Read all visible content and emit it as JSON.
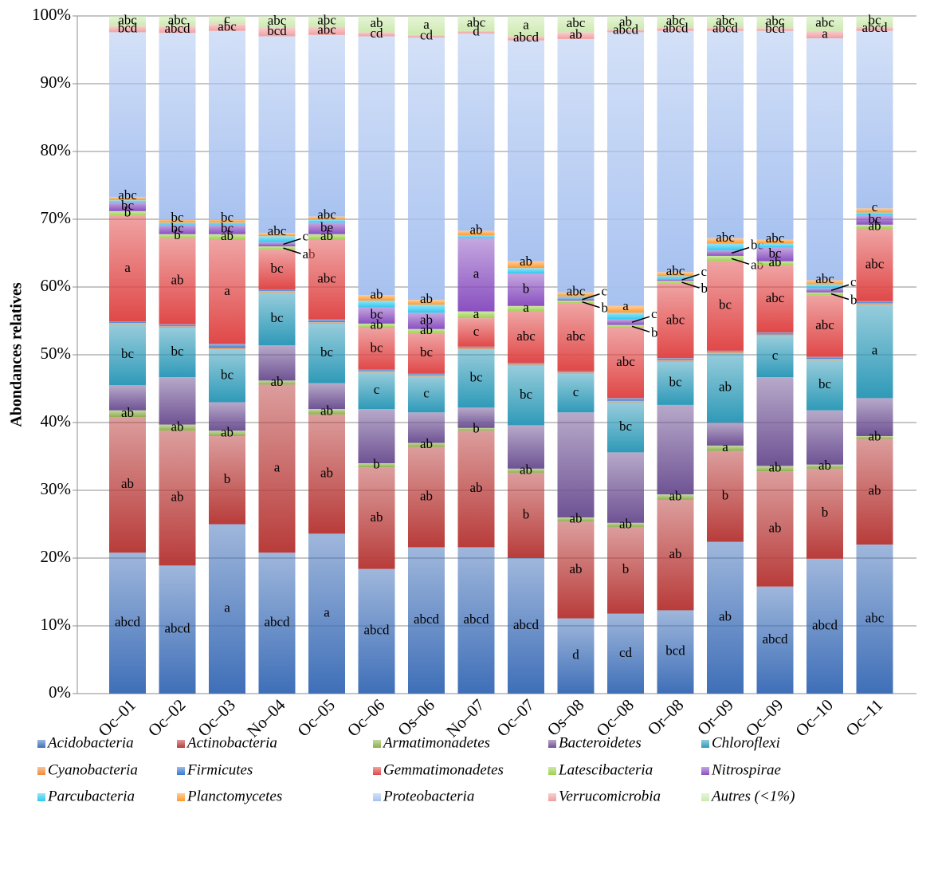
{
  "chart_data": {
    "type": "stacked_bar",
    "y_label": "Abondances  relatives",
    "categories": [
      "Oc–01",
      "Oc–02",
      "Oc–03",
      "No–04",
      "Oc–05",
      "Oc–06",
      "Os–06",
      "No–07",
      "Oc–07",
      "Os–08",
      "Oc–08",
      "Or–08",
      "Or–09",
      "Oc–09",
      "Oc–10",
      "Oc–11"
    ],
    "ylim": [
      0,
      100
    ],
    "yticks": [
      {
        "value": 0,
        "label": "0%"
      },
      {
        "value": 10,
        "label": "10%"
      },
      {
        "value": 20,
        "label": "20%"
      },
      {
        "value": 30,
        "label": "30%"
      },
      {
        "value": 40,
        "label": "40%"
      },
      {
        "value": 50,
        "label": "50%"
      },
      {
        "value": 60,
        "label": "60%"
      },
      {
        "value": 70,
        "label": "70%"
      },
      {
        "value": 80,
        "label": "80%"
      },
      {
        "value": 90,
        "label": "90%"
      },
      {
        "value": 100,
        "label": "100%"
      }
    ],
    "grid": true,
    "legend": "bottom",
    "series": [
      {
        "name": "Acidobacteria",
        "color": "#3f6fb8",
        "values": [
          20.8,
          18.9,
          25.0,
          20.8,
          23.6,
          18.4,
          21.6,
          21.6,
          20.0,
          11.1,
          11.8,
          12.3,
          22.4,
          15.8,
          19.9,
          22.0
        ],
        "letters": [
          "abcd",
          "abcd",
          "a",
          "abcd",
          "a",
          "abcd",
          "abcd",
          "abcd",
          "abcd",
          "d",
          "cd",
          "bcd",
          "ab",
          "abcd",
          "abcd",
          "abc"
        ]
      },
      {
        "name": "Actinobacteria",
        "color": "#b83c3a",
        "values": [
          20.0,
          19.9,
          13.0,
          24.8,
          17.6,
          15.0,
          14.8,
          17.2,
          12.6,
          14.3,
          12.8,
          16.3,
          13.4,
          17.0,
          13.3,
          15.6
        ],
        "letters": [
          "ab",
          "ab",
          "b",
          "a",
          "ab",
          "ab",
          "ab",
          "ab",
          "b",
          "ab",
          "b",
          "ab",
          "b",
          "ab",
          "b",
          "ab"
        ]
      },
      {
        "name": "Armatimonadetes",
        "color": "#8cb04a",
        "values": [
          1.0,
          0.9,
          0.8,
          0.6,
          0.8,
          0.6,
          0.6,
          0.4,
          0.6,
          0.6,
          0.6,
          0.8,
          0.8,
          0.8,
          0.6,
          0.4
        ],
        "letters": [
          "ab",
          "ab",
          "ab",
          "ab",
          "ab",
          "b",
          "ab",
          "b",
          "ab",
          "ab",
          "ab",
          "ab",
          "a",
          "ab",
          "ab",
          "ab"
        ]
      },
      {
        "name": "Bacteroidetes",
        "color": "#6f5394",
        "values": [
          3.7,
          7.0,
          4.2,
          5.2,
          3.8,
          8.0,
          4.5,
          3.0,
          6.4,
          15.5,
          10.4,
          13.2,
          3.4,
          13.1,
          8.0,
          5.6
        ]
      },
      {
        "name": "Chloroflexi",
        "color": "#2f9ab8",
        "values": [
          9.0,
          7.3,
          7.8,
          7.8,
          8.8,
          5.4,
          5.3,
          8.6,
          8.8,
          5.7,
          7.4,
          6.4,
          10.2,
          6.1,
          7.4,
          13.8
        ],
        "letters": [
          "bc",
          "bc",
          "bc",
          "bc",
          "bc",
          "c",
          "c",
          "bc",
          "bc",
          "c",
          "bc",
          "bc",
          "ab",
          "c",
          "bc",
          "a"
        ]
      },
      {
        "name": "Cyanobacteria",
        "color": "#f08a3a",
        "values": [
          0.2,
          0.2,
          0.2,
          0.2,
          0.2,
          0.2,
          0.2,
          0.2,
          0.2,
          0.2,
          0.2,
          0.2,
          0.2,
          0.2,
          0.2,
          0.2
        ]
      },
      {
        "name": "Firmicutes",
        "color": "#3a78d0",
        "values": [
          0.2,
          0.3,
          0.6,
          0.2,
          0.4,
          0.2,
          0.2,
          0.2,
          0.2,
          0.2,
          0.4,
          0.3,
          0.2,
          0.3,
          0.3,
          0.3
        ]
      },
      {
        "name": "Gemmatimonadetes",
        "color": "#e04848",
        "values": [
          15.6,
          12.7,
          15.4,
          5.9,
          11.8,
          6.2,
          6.0,
          4.2,
          7.6,
          10.0,
          10.4,
          11.0,
          13.2,
          9.9,
          9.1,
          10.7
        ],
        "letters": [
          "a",
          "ab",
          "a",
          "bc",
          "abc",
          "bc",
          "bc",
          "c",
          "abc",
          "abc",
          "abc",
          "abc",
          "bc",
          "abc",
          "abc",
          "abc"
        ]
      },
      {
        "name": "Latescibacteria",
        "color": "#9ed050",
        "values": [
          0.7,
          0.6,
          0.8,
          0.5,
          0.8,
          0.6,
          0.6,
          1.0,
          0.8,
          0.4,
          0.4,
          0.4,
          0.8,
          0.6,
          0.4,
          0.6
        ],
        "letters": [
          "b",
          "b",
          "ab",
          "ab",
          "ab",
          "ab",
          "ab",
          "a",
          "a",
          "b",
          "b",
          "b",
          "ab",
          "ab",
          "b",
          "ab"
        ]
      },
      {
        "name": "Nitrospirae",
        "color": "#8a50c0",
        "values": [
          1.3,
          1.4,
          1.4,
          0.6,
          1.7,
          2.4,
          2.4,
          10.8,
          4.8,
          0.3,
          0.8,
          0.3,
          0.8,
          2.0,
          0.6,
          1.4
        ],
        "letters": [
          "bc",
          "bc",
          "bc",
          "c",
          "be",
          "bc",
          "ab",
          "a",
          "b",
          "c",
          "c",
          "c",
          "bc",
          "bc",
          "c",
          "bc"
        ]
      },
      {
        "name": "Parcubacteria",
        "color": "#30c8f0",
        "values": [
          0.3,
          0.3,
          0.3,
          0.9,
          0.4,
          1.0,
          1.2,
          0.4,
          0.8,
          0.3,
          1.0,
          0.4,
          1.0,
          0.6,
          0.6,
          0.4
        ]
      },
      {
        "name": "Planctomycetes",
        "color": "#ff9a30",
        "values": [
          0.5,
          0.5,
          0.5,
          0.5,
          0.5,
          0.8,
          0.7,
          0.7,
          1.0,
          0.6,
          1.0,
          0.6,
          0.8,
          0.6,
          0.6,
          0.6
        ],
        "letters": [
          "abc",
          "bc",
          "bc",
          "abc",
          "abc",
          "ab",
          "ab",
          "ab",
          "ab",
          "abc",
          "a",
          "abc",
          "abc",
          "abc",
          "abc",
          "c"
        ]
      },
      {
        "name": "Proteobacteria",
        "color": "#a8c2f0",
        "values": [
          24.3,
          27.5,
          27.8,
          29.0,
          26.8,
          38.2,
          38.7,
          29.1,
          32.6,
          37.4,
          40.4,
          35.6,
          30.6,
          30.8,
          35.7,
          26.2
        ]
      },
      {
        "name": "Verrucomicrobia",
        "color": "#f0a0a0",
        "values": [
          0.9,
          1.0,
          1.0,
          1.3,
          1.2,
          0.6,
          0.4,
          0.4,
          0.6,
          1.0,
          0.4,
          0.5,
          0.5,
          0.4,
          1.1,
          0.6
        ],
        "letters": [
          "bcd",
          "abcd",
          "abc",
          "bcd",
          "abc",
          "cd",
          "cd",
          "d",
          "abcd",
          "ab",
          "abcd",
          "abcd",
          "abcd",
          "bcd",
          "a",
          "abcd"
        ]
      },
      {
        "name": "Autres (<1%)",
        "color": "#cdeab0",
        "values": [
          1.5,
          1.5,
          1.2,
          1.7,
          1.6,
          2.4,
          2.8,
          2.2,
          3.0,
          2.4,
          2.0,
          1.7,
          1.7,
          1.8,
          2.2,
          1.6
        ],
        "letters": [
          "abc",
          "abc",
          "c",
          "abc",
          "abc",
          "ab",
          "a",
          "abc",
          "a",
          "abc",
          "ab",
          "abc",
          "abc",
          "abc",
          "abc",
          "bc"
        ]
      }
    ]
  }
}
